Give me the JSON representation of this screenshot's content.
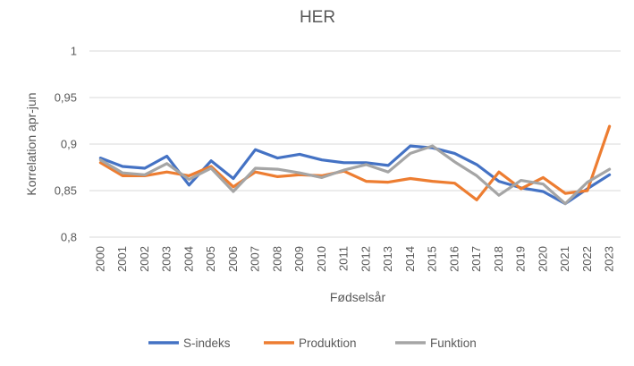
{
  "chart_data": {
    "type": "line",
    "title": "HER",
    "xlabel": "Fødselsår",
    "ylabel": "Korrelation apr-jun",
    "ylim": [
      0.8,
      1
    ],
    "yticks": [
      "0,8",
      "0,85",
      "0,9",
      "0,95",
      "1"
    ],
    "yticks_values": [
      0.8,
      0.85,
      0.9,
      0.95,
      1
    ],
    "grid": "horizontal",
    "legend_position": "bottom",
    "categories": [
      "2000",
      "2001",
      "2002",
      "2003",
      "2004",
      "2005",
      "2006",
      "2007",
      "2008",
      "2009",
      "2010",
      "2011",
      "2012",
      "2013",
      "2014",
      "2015",
      "2016",
      "2017",
      "2018",
      "2019",
      "2020",
      "2021",
      "2022",
      "2023"
    ],
    "series": [
      {
        "name": "S-indeks",
        "color": "#4472C4",
        "values": [
          0.885,
          0.876,
          0.874,
          0.887,
          0.856,
          0.882,
          0.863,
          0.894,
          0.885,
          0.889,
          0.883,
          0.88,
          0.88,
          0.877,
          0.898,
          0.896,
          0.89,
          0.878,
          0.86,
          0.853,
          0.849,
          0.836,
          0.852,
          0.867
        ]
      },
      {
        "name": "Produktion",
        "color": "#ED7D31",
        "values": [
          0.88,
          0.866,
          0.866,
          0.87,
          0.866,
          0.876,
          0.854,
          0.87,
          0.865,
          0.867,
          0.866,
          0.871,
          0.86,
          0.859,
          0.863,
          0.86,
          0.858,
          0.84,
          0.87,
          0.852,
          0.864,
          0.847,
          0.85,
          0.919
        ]
      },
      {
        "name": "Funktion",
        "color": "#A5A5A5",
        "values": [
          0.883,
          0.869,
          0.867,
          0.879,
          0.862,
          0.874,
          0.849,
          0.874,
          0.873,
          0.869,
          0.864,
          0.872,
          0.878,
          0.87,
          0.89,
          0.898,
          0.881,
          0.866,
          0.845,
          0.861,
          0.857,
          0.836,
          0.859,
          0.873
        ]
      }
    ]
  }
}
